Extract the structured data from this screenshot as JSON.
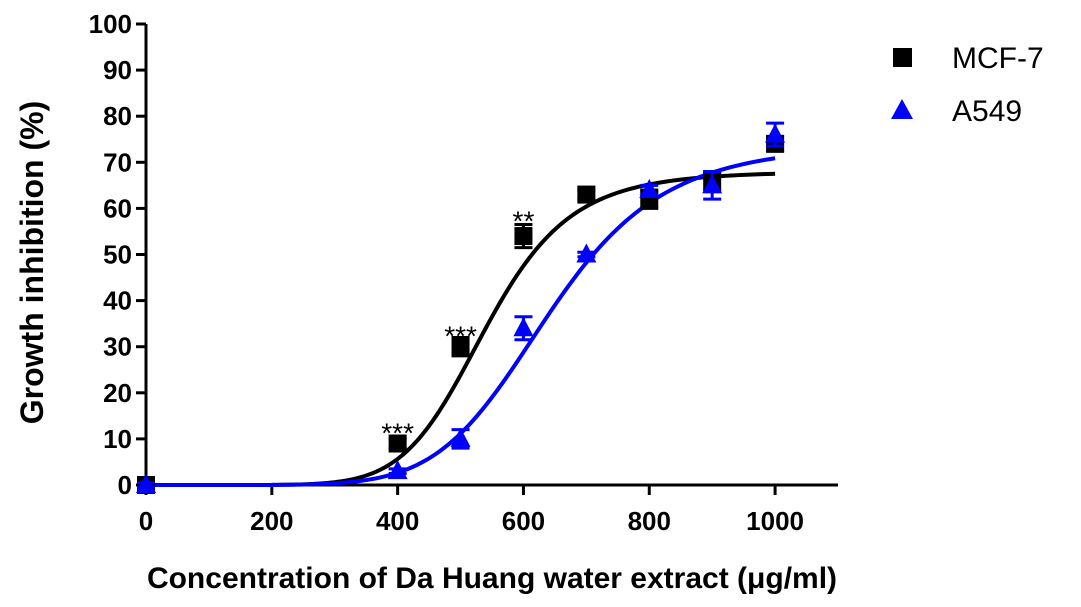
{
  "chart_data": {
    "type": "scatter",
    "xlabel": "Concentration of Da Huang water extract (μg/ml)",
    "ylabel": "Growth inhibition (%)",
    "xlim": [
      0,
      1100
    ],
    "ylim": [
      0,
      100
    ],
    "x_ticks": [
      0,
      200,
      400,
      600,
      800,
      1000
    ],
    "y_ticks": [
      0,
      10,
      20,
      30,
      40,
      50,
      60,
      70,
      80,
      90,
      100
    ],
    "x_tick_labels": [
      "0",
      "200",
      "400",
      "600",
      "800",
      "1000"
    ],
    "y_tick_labels": [
      "0",
      "10",
      "20",
      "30",
      "40",
      "50",
      "60",
      "70",
      "80",
      "90",
      "100"
    ],
    "grid": false,
    "legend_position": "top-right",
    "series": [
      {
        "name": "MCF-7",
        "marker": "square",
        "color": "#000000",
        "x": [
          0,
          400,
          500,
          600,
          700,
          800,
          900,
          1000
        ],
        "y": [
          0,
          9,
          30,
          54,
          63,
          62,
          66,
          74
        ],
        "err": [
          0.5,
          1,
          2,
          2.5,
          1,
          2,
          2,
          1.5
        ],
        "fit": {
          "model": "sigmoid",
          "top": 68,
          "ec50": 540,
          "hill": 8
        }
      },
      {
        "name": "A549",
        "marker": "triangle",
        "color": "#0000ff",
        "x": [
          0,
          400,
          500,
          600,
          700,
          800,
          900,
          1000
        ],
        "y": [
          0,
          3,
          10,
          34,
          50,
          64,
          65,
          76
        ],
        "err": [
          0.5,
          0.5,
          2,
          2.5,
          0.5,
          1,
          3,
          2.5
        ],
        "fit": {
          "model": "sigmoid",
          "top": 74,
          "ec50": 640,
          "hill": 7
        }
      }
    ],
    "annotations": [
      {
        "text": "***",
        "x": 400,
        "y": 14
      },
      {
        "text": "***",
        "x": 500,
        "y": 35
      },
      {
        "text": "**",
        "x": 600,
        "y": 60
      }
    ]
  }
}
